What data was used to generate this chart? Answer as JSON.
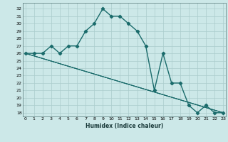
{
  "xlabel": "Humidex (Indice chaleur)",
  "bg_color": "#cce8e8",
  "grid_color": "#aacccc",
  "line_color": "#1a6b6b",
  "marker": "D",
  "markersize": 2.2,
  "linewidth": 1.0,
  "main_series": {
    "x": [
      0,
      1,
      2,
      3,
      4,
      5,
      6,
      7,
      8,
      9,
      10,
      11,
      12,
      13,
      14,
      15,
      16,
      17,
      18,
      19,
      20,
      21,
      22,
      23
    ],
    "y": [
      26,
      26,
      26,
      27,
      26,
      27,
      27,
      29,
      30,
      32,
      31,
      31,
      30,
      29,
      27,
      21,
      26,
      22,
      22,
      19,
      18,
      19,
      18,
      18
    ]
  },
  "straight_lines": [
    {
      "x": [
        0,
        23
      ],
      "y": [
        26,
        18
      ]
    },
    {
      "x": [
        0,
        23
      ],
      "y": [
        26,
        18
      ]
    },
    {
      "x": [
        0,
        23
      ],
      "y": [
        26,
        18
      ]
    }
  ],
  "xlim": [
    -0.3,
    23.3
  ],
  "ylim": [
    17.5,
    32.8
  ],
  "yticks": [
    18,
    19,
    20,
    21,
    22,
    23,
    24,
    25,
    26,
    27,
    28,
    29,
    30,
    31,
    32
  ],
  "xticks": [
    0,
    1,
    2,
    3,
    4,
    5,
    6,
    7,
    8,
    9,
    10,
    11,
    12,
    13,
    14,
    15,
    16,
    17,
    18,
    19,
    20,
    21,
    22,
    23
  ],
  "tick_fontsize": 4.5,
  "xlabel_fontsize": 5.5
}
